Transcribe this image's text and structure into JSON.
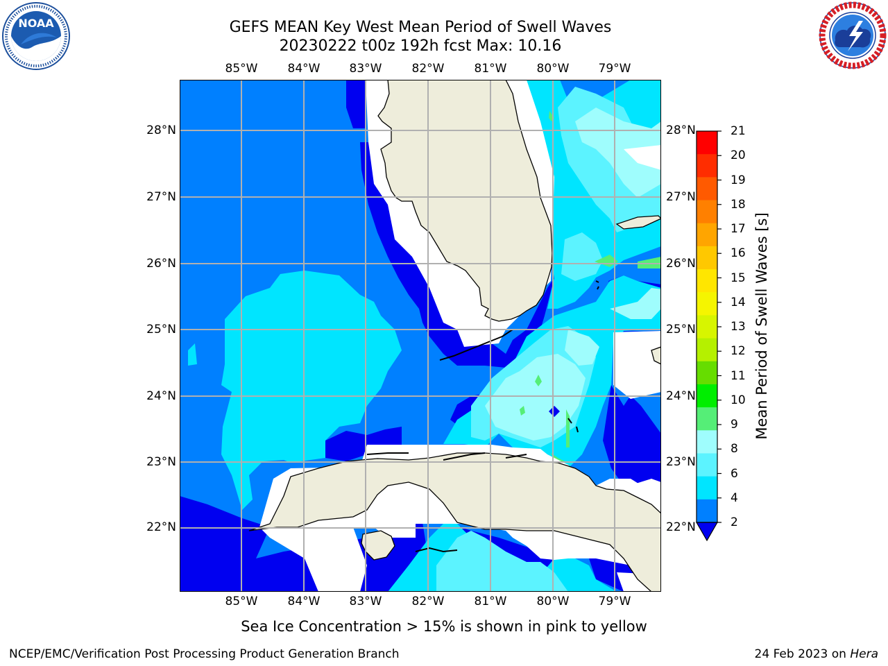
{
  "title": {
    "line1": "GEFS MEAN Key West Mean Period of Swell Waves",
    "line2": "20230222 t00z 192h fcst   Max: 10.16"
  },
  "logos": {
    "left": {
      "icon": "noaa-logo",
      "text": "NOAA",
      "ring_text": "NATIONAL OCEANIC AND ATMOSPHERIC ADMINISTRATION · U.S. DEPARTMENT OF COMMERCE"
    },
    "right": {
      "icon": "nws-logo",
      "ring_text": "NATIONAL WEATHER SERVICE"
    }
  },
  "map": {
    "lon_ticks": [
      "85°W",
      "84°W",
      "83°W",
      "82°W",
      "81°W",
      "80°W",
      "79°W"
    ],
    "lat_ticks": [
      "28°N",
      "27°N",
      "26°N",
      "25°N",
      "24°N",
      "23°N",
      "22°N"
    ],
    "land_color": "#eeeddb",
    "grid_color": "#b0b0b0"
  },
  "colorbar": {
    "title": "Mean Period of Swell Waves [s]",
    "labels": [
      "21",
      "20",
      "19",
      "18",
      "17",
      "16",
      "15",
      "14",
      "13",
      "12",
      "11",
      "10",
      "9",
      "8",
      "6",
      "4",
      "2"
    ],
    "colors": [
      "#ff0000",
      "#ff2d00",
      "#ff5a00",
      "#ff8000",
      "#ffa500",
      "#ffc800",
      "#ffe600",
      "#f5f500",
      "#d7f500",
      "#b5f000",
      "#66dd00",
      "#00ee00",
      "#55ee77",
      "#9ffdfd",
      "#5cf3ff",
      "#00e5ff",
      "#0080ff"
    ],
    "extend_color": "#0000f0"
  },
  "notes": {
    "ice": "Sea Ice Concentration > 15% is shown in pink to yellow",
    "footer_left": "NCEP/EMC/Verification Post Processing Product Generation Branch",
    "footer_date": "24 Feb 2023 on",
    "footer_host": "Hera"
  }
}
